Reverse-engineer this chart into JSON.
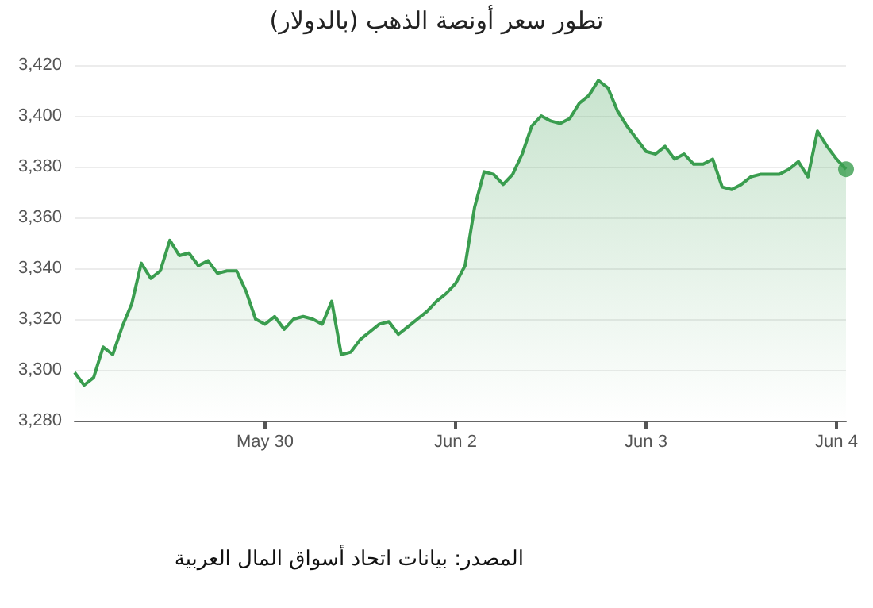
{
  "chart_data": {
    "type": "area",
    "title": "تطور سعر أونصة الذهب (بالدولار)",
    "annotations": [
      "المصدر: بيانات اتحاد أسواق المال العربية"
    ],
    "categories": [
      null,
      null,
      null,
      null,
      null,
      null,
      null,
      null,
      null,
      null,
      null,
      null,
      null,
      null,
      null,
      null,
      null,
      null,
      null,
      null,
      "May 30",
      null,
      null,
      null,
      null,
      null,
      null,
      null,
      null,
      null,
      null,
      null,
      null,
      null,
      null,
      null,
      null,
      null,
      null,
      null,
      "Jun 2",
      null,
      null,
      null,
      null,
      null,
      null,
      null,
      null,
      null,
      null,
      null,
      null,
      null,
      null,
      null,
      null,
      null,
      null,
      null,
      "Jun 3",
      null,
      null,
      null,
      null,
      null,
      null,
      null,
      null,
      null,
      null,
      null,
      null,
      null,
      null,
      null,
      null,
      null,
      null,
      null,
      "Jun 4",
      null
    ],
    "ylim": [
      3280,
      3420
    ],
    "yticks": [
      {
        "value": 3280,
        "label": "3,280"
      },
      {
        "value": 3300,
        "label": "3,300"
      },
      {
        "value": 3320,
        "label": "3,320"
      },
      {
        "value": 3340,
        "label": "3,340"
      },
      {
        "value": 3360,
        "label": "3,360"
      },
      {
        "value": 3380,
        "label": "3,380"
      },
      {
        "value": 3400,
        "label": "3,400"
      },
      {
        "value": 3420,
        "label": "3,420"
      }
    ],
    "grid": "y",
    "marker": "none",
    "line_style": "solid",
    "series": [
      {
        "color": "#3a9d4f",
        "values": [
          3299,
          3294,
          3297,
          3309,
          3306,
          3317,
          3326,
          3342,
          3336,
          3339,
          3351,
          3345,
          3346,
          3341,
          3343,
          3338,
          3339,
          3339,
          3331,
          3320,
          3318,
          3321,
          3316,
          3320,
          3321,
          3320,
          3318,
          3327,
          3306,
          3307,
          3312,
          3315,
          3318,
          3319,
          3314,
          3317,
          3320,
          3323,
          3327,
          3330,
          3334,
          3341,
          3364,
          3378,
          3377,
          3373,
          3377,
          3385,
          3396,
          3400,
          3398,
          3397,
          3399,
          3405,
          3408,
          3414,
          3411,
          3402,
          3396,
          3391,
          3386,
          3385,
          3388,
          3383,
          3385,
          3381,
          3381,
          3383,
          3372,
          3371,
          3373,
          3376,
          3377,
          3377,
          3377,
          3379,
          3382,
          3376,
          3394,
          3388,
          3383,
          3379
        ]
      },
      {
        "type": "scatter",
        "color": "#3a9d4f",
        "marker": "circle",
        "values": [
          null,
          null,
          null,
          null,
          null,
          null,
          null,
          null,
          null,
          null,
          null,
          null,
          null,
          null,
          null,
          null,
          null,
          null,
          null,
          null,
          null,
          null,
          null,
          null,
          null,
          null,
          null,
          null,
          null,
          null,
          null,
          null,
          null,
          null,
          null,
          null,
          null,
          null,
          null,
          null,
          null,
          null,
          null,
          null,
          null,
          null,
          null,
          null,
          null,
          null,
          null,
          null,
          null,
          null,
          null,
          null,
          null,
          null,
          null,
          null,
          null,
          null,
          null,
          null,
          null,
          null,
          null,
          null,
          null,
          null,
          null,
          null,
          null,
          null,
          null,
          null,
          null,
          null,
          null,
          null,
          null,
          3379
        ]
      }
    ]
  }
}
